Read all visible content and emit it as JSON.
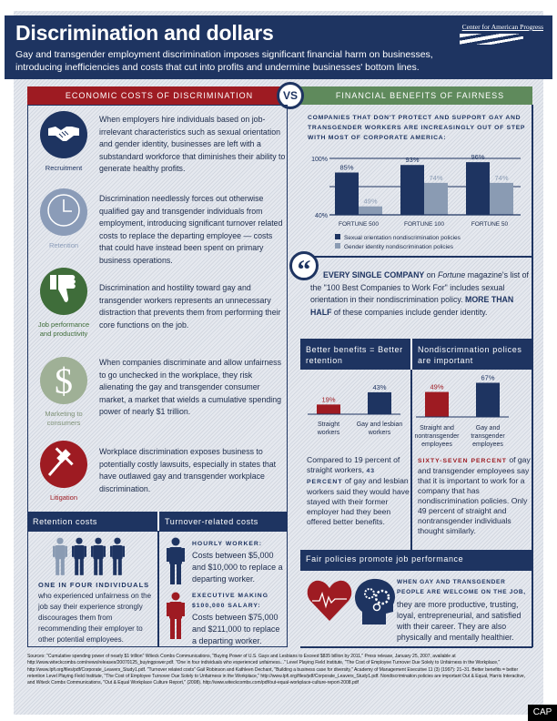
{
  "header": {
    "title": "Discrimination and dollars",
    "subtitle": "Gay and transgender employment discrimination imposes significant financial harm on businesses, introducing inefficiencies and costs that cut into profits and undermine businesses' bottom lines.",
    "logo_text": "Center for American Progress"
  },
  "sections": {
    "left_title": "ECONOMIC COSTS OF DISCRIMINATION",
    "vs": "VS",
    "right_title": "FINANCIAL BENEFITS OF FAIRNESS"
  },
  "costs": [
    {
      "label": "Recruitment",
      "icon": "handshake-icon",
      "color": "#1e3461",
      "text": "When employers hire individuals based on job-irrelevant characteristics such as sexual orientation and gender identity, businesses are left with a substandard workforce that diminishes their ability to generate healthy profits."
    },
    {
      "label": "Retention",
      "icon": "clock-icon",
      "color": "#8b9cb8",
      "text": "Discrimination needlessly forces out otherwise qualified gay and transgender individuals from employment, introducing significant turnover related costs to replace the departing employee — costs that could have instead been spent on primary business operations."
    },
    {
      "label": "Job performance and productivity",
      "icon": "thumbs-down-icon",
      "color": "#3f6d3a",
      "text": "Discrimination and hostility toward gay and transgender workers represents an unnecessary distraction that prevents them from performing their core functions on the job."
    },
    {
      "label": "Marketing to consumers",
      "icon": "dollar-icon",
      "color": "#9fb096",
      "text": "When companies discriminate and allow unfairness to go unchecked in the workplace, they risk alienating the gay and transgender consumer market, a market that wields a cumulative spending power of nearly $1 trillion."
    },
    {
      "label": "Litigation",
      "icon": "gavel-icon",
      "color": "#9e1b22",
      "text": "Workplace discrimination exposes business to potentially costly lawsuits, especially in states that have outlawed gay and transgender workplace discrimination."
    }
  ],
  "retention_costs": {
    "title": "Retention costs",
    "highlight": "ONE IN FOUR INDIVIDUALS",
    "text": "who experienced unfairness on the job say their experience strongly discourages them from recommending their employer to other potential employees."
  },
  "turnover_costs": {
    "title": "Turnover-related costs",
    "hourly_label": "HOURLY WORKER:",
    "hourly_text": "Costs between $5,000 and $10,000 to replace a departing worker.",
    "exec_label": "EXECUTIVE MAKING $100,000 SALARY:",
    "exec_text": "Costs between $75,000 and $211,000 to replace a departing worker."
  },
  "quote": {
    "bold1": "EVERY SINGLE COMPANY",
    "t1": " on ",
    "italic": "Fortune",
    "t2": " magazine's list of the \"100 Best Companies to Work For\" includes sexual orientation in their nondiscrimination policy. ",
    "bold2": "MORE THAN HALF",
    "t3": " of these companies include gender identity."
  },
  "retention_panel": {
    "title": "Better benefits = Better retention",
    "text1": "Compared to 19 percent of straight workers, ",
    "highlight": "43 PERCENT",
    "text2": " of gay and lesbian workers said they would have stayed with their former employer had they been offered better benefits."
  },
  "policy_panel": {
    "title": "Nondiscrimnation polices are important",
    "highlight": "SIXTY-SEVEN PERCENT",
    "text": " of gay and transgender employees say that it is important to work for a company that has nondiscrimination policies. Only 49 percent of straight and nontransgender individuals thought similarly."
  },
  "performance": {
    "title": "Fair policies promote job performance",
    "highlight": "WHEN GAY AND TRANSGENDER PEOPLE ARE WELCOME ON THE JOB,",
    "text": "they are more productive, trusting, loyal, entrepreneurial, and satisfied with their career. They are also physically and mentally healthier."
  },
  "chart_data": [
    {
      "type": "bar",
      "title": "COMPANIES THAT DON'T PROTECT AND SUPPORT GAY AND TRANSGENDER WORKERS ARE INCREASINGLY OUT OF STEP WITH MOST OF CORPORATE AMERICA:",
      "categories": [
        "FORTUNE 500",
        "FORTUNE 100",
        "FORTUNE 50"
      ],
      "series": [
        {
          "name": "Sexual orientation nondiscrimination policies",
          "values": [
            85,
            93,
            96
          ],
          "color": "#1e3461"
        },
        {
          "name": "Gender identity nondiscrimination policies",
          "values": [
            49,
            74,
            74
          ],
          "color": "#8a9bb3"
        }
      ],
      "ylim": [
        40,
        100
      ],
      "ytick_labels": [
        "40%",
        "100%"
      ],
      "grid": true,
      "legend": "bottom"
    },
    {
      "type": "bar",
      "categories": [
        "Straight workers",
        "Gay and lesbian workers"
      ],
      "values": [
        19,
        43
      ],
      "labels": [
        "19%",
        "43%"
      ],
      "colors": [
        "#9e1b22",
        "#1e3461"
      ]
    },
    {
      "type": "bar",
      "categories": [
        "Straight and nontransgender employees",
        "Gay and transgender employees"
      ],
      "values": [
        49,
        67
      ],
      "labels": [
        "49%",
        "67%"
      ],
      "colors": [
        "#9e1b22",
        "#1e3461"
      ]
    }
  ],
  "sources": "Sources: \"Cumulative spending power of nearly $1 trillion\" Witeck Combs Communications, \"Buying Power of U.S. Gays and Lesbians to Exceed $835 billion by 2011,\" Press release, January 25, 2007, available at http://www.witeckcombs.com/news/releases/20070125_buyingpower.pdf. \"One in four individuals who experienced unfairness...\" Level Playing Field Institute, \"The Cost of Employee Turnover Due Solely to Unfairness in the Workplace,\" http://www.lpfi.org/files/pdf/Corporate_Leavers_Study1.pdf. \"Turnover related costs\" Gail Robinson and Kathleen Dechant, \"Building a business case for diversity,\" Academy of Management Executive 11 (3) (1997): 21–31. Better benefits = better retention Level Playing Field Institute, \"The Cost of Employee Turnover Due Solely to Unfairness in the Workplace,\" http://www.lpfi.org/files/pdf/Corporate_Leavers_Study1.pdf. Nondiscrimination policies are important Out & Equal, Harris Interactive, and Witeck Combs Communications, \"Out & Equal Workplace Culture Report,\" (2008). http://www.witeckcombs.com/pdf/out-equal-workplace-culture-report-2008.pdf",
  "footer": {
    "cap": "CAP"
  }
}
